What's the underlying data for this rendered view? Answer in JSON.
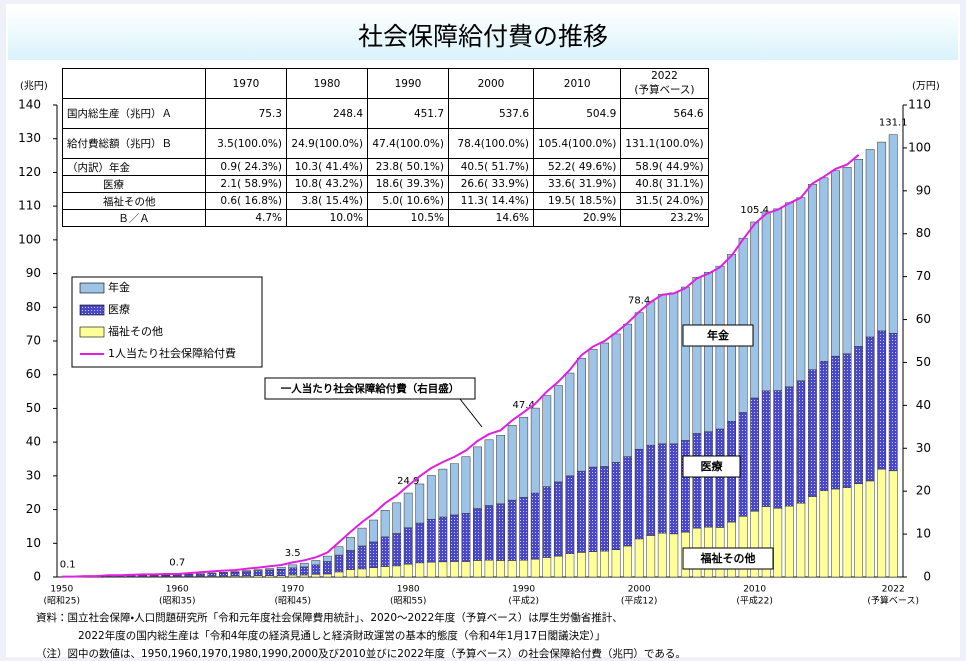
{
  "chart_data": {
    "type": "bar",
    "stacked": true,
    "title": "社会保障給付費の推移",
    "y_unit": "(兆円)",
    "y2_unit": "(万円)",
    "annotation": "一人当たり社会保障給付費（右目盛）",
    "categories": [
      "1950",
      null,
      null,
      null,
      null,
      null,
      null,
      null,
      null,
      null,
      "1960",
      null,
      null,
      null,
      null,
      null,
      null,
      null,
      null,
      null,
      "1970",
      null,
      null,
      null,
      null,
      null,
      null,
      null,
      null,
      null,
      "1980",
      null,
      null,
      null,
      null,
      null,
      null,
      null,
      null,
      null,
      "1990",
      null,
      null,
      null,
      null,
      null,
      null,
      null,
      null,
      null,
      "2000",
      null,
      null,
      null,
      null,
      null,
      null,
      null,
      null,
      null,
      "2010",
      null,
      null,
      null,
      null,
      null,
      null,
      null,
      null,
      null,
      null,
      null,
      "2022"
    ],
    "era_labels": [
      "(昭和25)",
      null,
      null,
      null,
      null,
      null,
      null,
      null,
      null,
      null,
      "(昭和35)",
      null,
      null,
      null,
      null,
      null,
      null,
      null,
      null,
      null,
      "(昭和45)",
      null,
      null,
      null,
      null,
      null,
      null,
      null,
      null,
      null,
      "(昭和55)",
      null,
      null,
      null,
      null,
      null,
      null,
      null,
      null,
      null,
      "(平成2)",
      null,
      null,
      null,
      null,
      null,
      null,
      null,
      null,
      null,
      "(平成12)",
      null,
      null,
      null,
      null,
      null,
      null,
      null,
      null,
      null,
      "(平成22)",
      null,
      null,
      null,
      null,
      null,
      null,
      null,
      null,
      null,
      null,
      null,
      "(予算ベース)"
    ],
    "total_labels": [
      "0.1",
      null,
      null,
      null,
      null,
      null,
      null,
      null,
      null,
      null,
      "0.7",
      null,
      null,
      null,
      null,
      null,
      null,
      null,
      null,
      null,
      "3.5",
      null,
      null,
      null,
      null,
      null,
      null,
      null,
      null,
      null,
      "24.9",
      null,
      null,
      null,
      null,
      null,
      null,
      null,
      null,
      null,
      "47.4",
      null,
      null,
      null,
      null,
      null,
      null,
      null,
      null,
      null,
      "78.4",
      null,
      null,
      null,
      null,
      null,
      null,
      null,
      null,
      null,
      "105.4",
      null,
      null,
      null,
      null,
      null,
      null,
      null,
      null,
      null,
      null,
      null,
      "131.1"
    ],
    "series": [
      {
        "name": "年金",
        "color": "#9dc3e6",
        "values": [
          0.0,
          0.0,
          0.0,
          0.0,
          0.0,
          0.0,
          0.0,
          0.1,
          0.1,
          0.1,
          0.1,
          0.1,
          0.2,
          0.2,
          0.2,
          0.2,
          0.3,
          0.3,
          0.4,
          0.6,
          0.9,
          1.1,
          1.3,
          1.6,
          2.5,
          3.9,
          5.3,
          6.5,
          7.9,
          9.1,
          10.3,
          11.6,
          13.0,
          14.2,
          15.2,
          16.8,
          18.3,
          19.5,
          20.3,
          22.2,
          23.8,
          25.2,
          27.0,
          28.6,
          30.5,
          33.5,
          34.9,
          36.6,
          38.1,
          39.3,
          40.5,
          42.5,
          44.3,
          44.8,
          45.5,
          46.3,
          47.3,
          48.3,
          49.5,
          51.7,
          52.2,
          53.1,
          53.9,
          54.6,
          54.3,
          55.0,
          54.4,
          55.0,
          55.3,
          55.5,
          55.6,
          56.0,
          58.9
        ]
      },
      {
        "name": "医療",
        "color": "#4848c8",
        "values": [
          0.1,
          0.1,
          0.1,
          0.1,
          0.2,
          0.3,
          0.3,
          0.3,
          0.3,
          0.4,
          0.5,
          0.6,
          0.7,
          0.8,
          1.0,
          1.1,
          1.3,
          1.5,
          1.7,
          1.9,
          2.1,
          2.4,
          2.8,
          3.7,
          5.0,
          5.7,
          6.8,
          7.6,
          8.8,
          9.6,
          10.8,
          11.8,
          12.7,
          13.3,
          13.8,
          14.3,
          15.4,
          16.2,
          16.8,
          17.9,
          18.6,
          19.6,
          21.0,
          22.0,
          23.1,
          24.1,
          25.1,
          25.1,
          25.9,
          26.5,
          26.6,
          26.8,
          26.5,
          26.7,
          27.2,
          28.1,
          28.3,
          29.2,
          29.9,
          30.8,
          33.6,
          34.3,
          34.9,
          35.4,
          36.3,
          37.7,
          38.4,
          39.4,
          39.7,
          40.7,
          42.7,
          41.0,
          40.8
        ]
      },
      {
        "name": "福祉その他",
        "color": "#ffff99",
        "values": [
          0.0,
          0.0,
          0.1,
          0.1,
          0.1,
          0.1,
          0.1,
          0.1,
          0.1,
          0.1,
          0.1,
          0.1,
          0.1,
          0.2,
          0.2,
          0.3,
          0.3,
          0.4,
          0.4,
          0.4,
          0.6,
          0.6,
          0.8,
          0.9,
          1.5,
          2.2,
          2.4,
          2.8,
          3.1,
          3.3,
          3.8,
          4.2,
          4.4,
          4.5,
          4.6,
          4.6,
          4.9,
          5.0,
          4.9,
          4.9,
          5.0,
          5.3,
          5.8,
          6.2,
          6.9,
          7.3,
          7.5,
          7.7,
          8.1,
          9.2,
          11.3,
          12.3,
          13.0,
          12.8,
          13.3,
          14.5,
          14.8,
          14.7,
          16.3,
          18.0,
          19.5,
          20.9,
          20.4,
          21.0,
          21.9,
          23.8,
          25.6,
          26.1,
          26.5,
          27.7,
          28.5,
          32.0,
          31.5
        ]
      },
      {
        "name": "1人当たり社会保障給付費",
        "type": "line",
        "axis": "y2",
        "color": "#e020e0",
        "values": [
          0.1,
          0.1,
          0.2,
          0.2,
          0.4,
          0.4,
          0.5,
          0.6,
          0.6,
          0.7,
          0.7,
          0.9,
          1.1,
          1.3,
          1.5,
          1.6,
          1.9,
          2.2,
          2.5,
          2.8,
          3.4,
          3.9,
          4.6,
          5.7,
          8.1,
          10.5,
          12.8,
          14.8,
          17.2,
          19.0,
          21.3,
          23.5,
          25.4,
          26.8,
          28.0,
          29.5,
          31.7,
          33.3,
          34.2,
          36.5,
          38.4,
          40.4,
          43.2,
          45.5,
          48.3,
          51.7,
          53.7,
          55.0,
          57.0,
          59.2,
          61.8,
          64.1,
          65.8,
          66.1,
          67.3,
          69.6,
          70.7,
          72.2,
          74.9,
          78.7,
          82.3,
          84.7,
          85.6,
          87.1,
          88.4,
          91.7,
          93.3,
          95.1,
          96.1,
          98.4,
          null,
          null,
          null
        ]
      }
    ],
    "ylim": [
      0,
      140
    ],
    "yticks": [
      0,
      10,
      20,
      30,
      40,
      50,
      60,
      70,
      80,
      90,
      100,
      110,
      120,
      130,
      140
    ],
    "y2lim": [
      0,
      110
    ],
    "y2ticks": [
      0,
      10,
      20,
      30,
      40,
      50,
      60,
      70,
      80,
      90,
      100,
      110
    ],
    "grid": false,
    "legend": "upper-left"
  },
  "table": {
    "columns": [
      "1970",
      "1980",
      "1990",
      "2000",
      "2010",
      "2022"
    ],
    "last_column_note": "(予算ベース)",
    "rows": [
      {
        "label": "国内総生産（兆円）Ａ",
        "cells": [
          "75.3",
          "248.4",
          "451.7",
          "537.6",
          "504.9",
          "564.6"
        ]
      },
      {
        "label": "給付費総額（兆円）Ｂ",
        "cells": [
          "3.5(100.0%)",
          "24.9(100.0%)",
          "47.4(100.0%)",
          "78.4(100.0%)",
          "105.4(100.0%)",
          "131.1(100.0%)"
        ]
      },
      {
        "label": "（内訳）年金",
        "cells": [
          "0.9( 24.3%)",
          "10.3( 41.4%)",
          "23.8( 50.1%)",
          "40.5( 51.7%)",
          "52.2( 49.6%)",
          "58.9( 44.9%)"
        ]
      },
      {
        "label": "医療",
        "cells": [
          "2.1( 58.9%)",
          "10.8( 43.2%)",
          "18.6( 39.3%)",
          "26.6( 33.9%)",
          "33.6( 31.9%)",
          "40.8( 31.1%)"
        ]
      },
      {
        "label": "福祉その他",
        "cells": [
          "0.6( 16.8%)",
          "3.8( 15.4%)",
          "5.0( 10.6%)",
          "11.3( 14.4%)",
          "19.5( 18.5%)",
          "31.5( 24.0%)"
        ]
      },
      {
        "label": "Ｂ／Ａ",
        "cells": [
          "4.7%",
          "10.0%",
          "10.5%",
          "14.6%",
          "20.9%",
          "23.2%"
        ]
      }
    ]
  },
  "notes": [
    "資料：国立社会保障・人口問題研究所「令和元年度社会保障費用統計」、2020～2022年度（予算ベース）は厚生労働省推計、",
    "2022年度の国内総生産は「令和4年度の経済見通しと経済財政運営の基本的態度（令和4年1月17日閣議決定）」",
    "（注）図中の数値は、1950,1960,1970,1980,1990,2000及び2010並びに2022年度（予算ベース）の社会保障給付費（兆円）である。"
  ]
}
